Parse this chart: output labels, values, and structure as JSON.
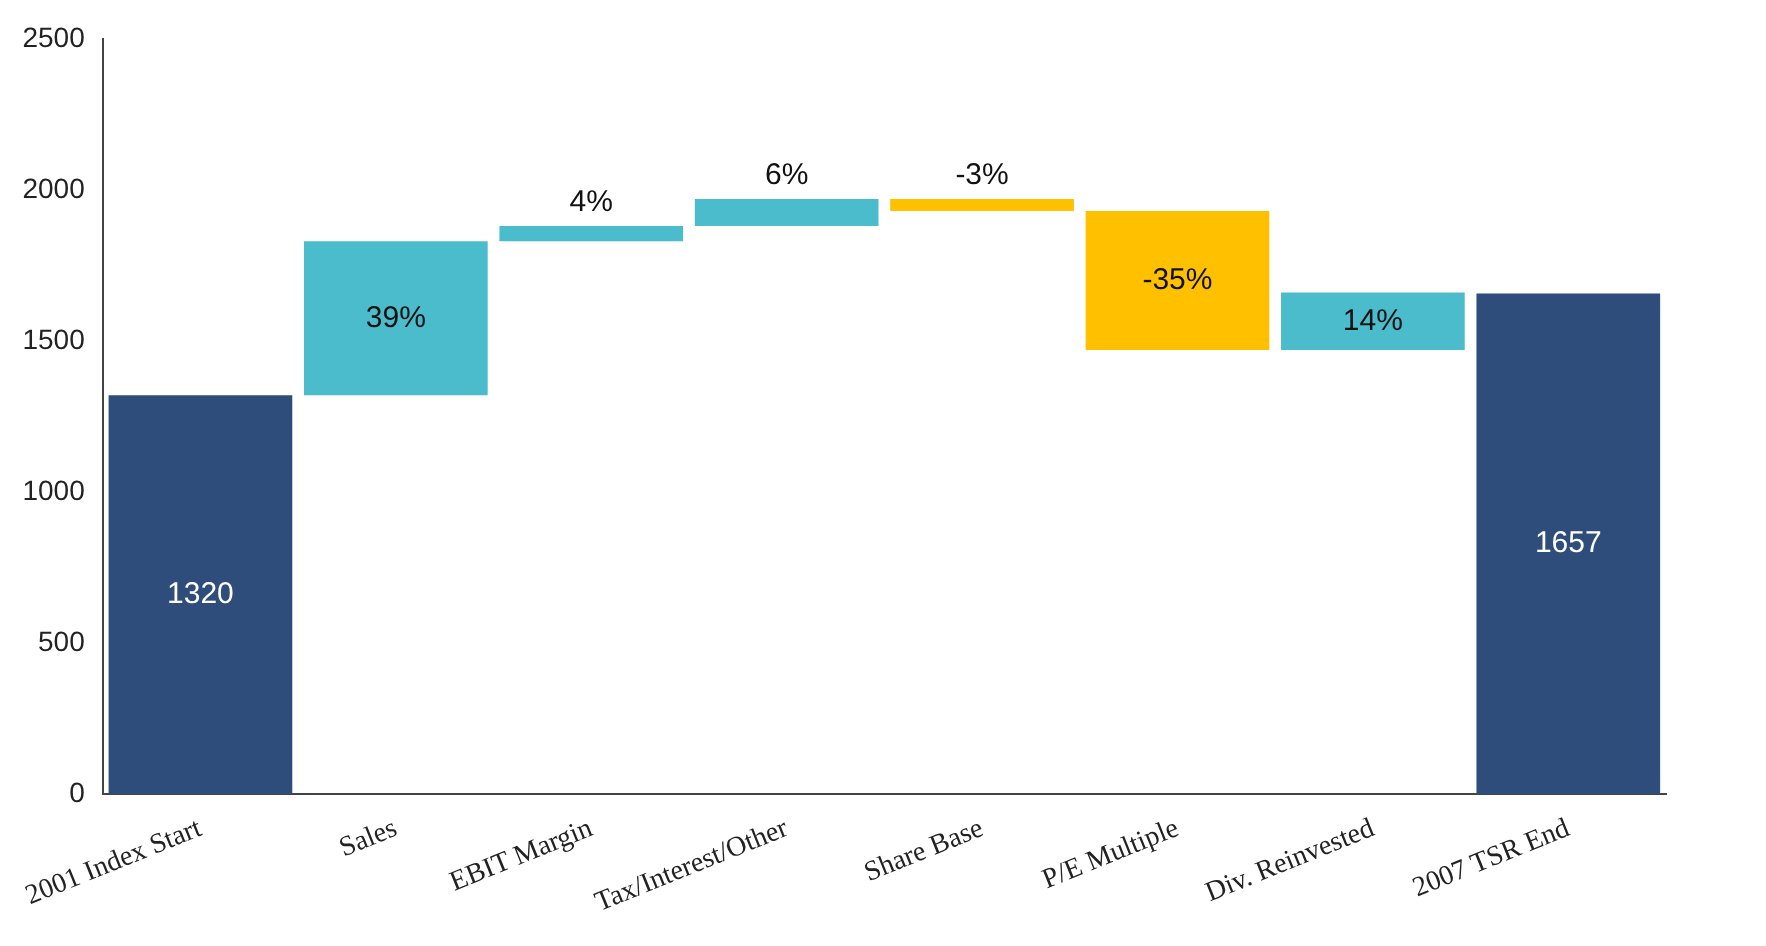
{
  "chart_data": {
    "type": "bar",
    "categories": [
      "2001 Index Start",
      "Sales",
      "EBIT Margin",
      "Tax/Interest/Other",
      "Share Base",
      "P/E Multiple",
      "Div. Reinvested",
      "2007 TSR End"
    ],
    "values": [
      1320,
      510,
      50,
      90,
      -40,
      -460,
      190,
      1657
    ],
    "base": [
      0,
      1320,
      1830,
      1880,
      1970,
      1930,
      1470,
      0
    ],
    "colors": [
      "#2e4d7a",
      "#4bbccb",
      "#4bbccb",
      "#4bbccb",
      "#ffc000",
      "#ffc000",
      "#4bbccb",
      "#2e4d7a"
    ],
    "value_labels": [
      "1320",
      null,
      null,
      null,
      null,
      null,
      null,
      "1657"
    ],
    "annotations": [
      "39%",
      "4%",
      "6%",
      "-3%",
      "-35%",
      "14%"
    ],
    "ylim": [
      0,
      2500
    ],
    "yticks": [
      0,
      500,
      1000,
      1500,
      2000,
      2500
    ],
    "grid": false,
    "legend": false
  }
}
